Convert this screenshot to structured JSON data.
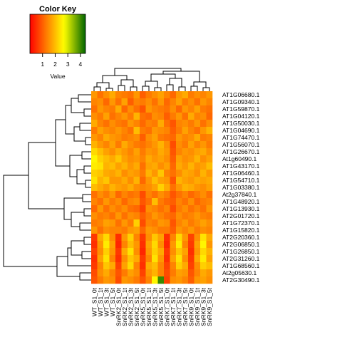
{
  "chart_data": {
    "type": "heatmap",
    "key_title": "Color Key",
    "key_xlabel": "Value",
    "colorlim": [
      0,
      4.4
    ],
    "key_ticks": [
      1,
      2,
      3,
      4
    ],
    "colors": [
      "#ff0000",
      "#ffff00",
      "#006400"
    ],
    "color_stops": [
      0,
      2.7,
      4.4
    ],
    "columns": [
      "WT_S1_0t",
      "WT_S1_1t",
      "WT_S1_3t",
      "WT_S1_5t",
      "SnRK2_S1_0t",
      "SnRK2_S1_1t",
      "SnRK2_S1_3t",
      "SnRK2_S1_5t",
      "SnRK5_S1_0t",
      "SnRK5_S1_1t",
      "SnRK5_S1_3t",
      "SnRK5_S1_5t",
      "SnRK7_S1_0t",
      "SnRK7_S1_1t",
      "SnRK7_S1_3t",
      "SnRK7_S1_5t",
      "SnRK9_S1_0t",
      "SnRK9_S1_1t",
      "SnRK9_S1_3t",
      "SnRK9_S1_5t"
    ],
    "rows": [
      "AT1G06680.1",
      "AT1G09340.1",
      "AT1G59870.1",
      "AT1G04120.1",
      "AT1G50030.1",
      "AT1G04690.1",
      "AT1G74470.1",
      "AT1G56070.1",
      "AT1G26670.1",
      "At1g60490.1",
      "AT1G43170.1",
      "AT1G06460.1",
      "AT1G54710.1",
      "AT1G03380.1",
      "At2g37840.1",
      "AT1G48920.1",
      "AT1G13930.1",
      "AT2G01720.1",
      "AT1G72370.1",
      "AT1G15820.1",
      "AT2G20360.1",
      "AT2G06850.1",
      "AT1G26850.1",
      "AT2G31260.1",
      "AT1G68560.1",
      "At2g05630.1",
      "AT2G30490.1"
    ],
    "values": [
      [
        1.6,
        1.2,
        1.5,
        1.8,
        1.4,
        1.3,
        1.2,
        1.6,
        1.0,
        1.3,
        1.5,
        1.7,
        1.4,
        1.1,
        1.6,
        1.8,
        1.3,
        1.5,
        1.4,
        1.6
      ],
      [
        1.4,
        1.5,
        1.1,
        1.6,
        1.2,
        1.7,
        1.0,
        1.4,
        1.3,
        1.5,
        1.2,
        1.6,
        1.1,
        1.4,
        1.7,
        1.3,
        1.5,
        1.2,
        1.6,
        1.4
      ],
      [
        1.2,
        1.6,
        1.4,
        1.3,
        1.8,
        1.1,
        1.5,
        1.2,
        0.9,
        1.6,
        1.4,
        1.3,
        1.2,
        1.5,
        1.1,
        1.6,
        1.4,
        1.7,
        1.3,
        1.2
      ],
      [
        1.5,
        1.3,
        1.7,
        1.2,
        1.4,
        1.6,
        1.3,
        1.9,
        1.2,
        1.1,
        1.5,
        1.4,
        1.0,
        1.3,
        1.6,
        1.2,
        1.8,
        1.4,
        1.5,
        1.1
      ],
      [
        1.8,
        1.4,
        1.2,
        1.5,
        1.3,
        1.2,
        1.6,
        1.4,
        1.1,
        1.4,
        1.3,
        1.8,
        1.2,
        0.9,
        1.4,
        1.5,
        1.3,
        1.6,
        1.2,
        1.5
      ],
      [
        1.3,
        1.7,
        1.5,
        1.4,
        1.6,
        1.4,
        1.2,
        2.0,
        1.3,
        1.2,
        1.6,
        1.5,
        1.4,
        1.0,
        1.3,
        1.7,
        1.4,
        1.2,
        1.6,
        1.9
      ],
      [
        1.6,
        1.4,
        1.8,
        1.6,
        1.5,
        1.3,
        1.4,
        1.5,
        1.0,
        1.5,
        1.7,
        1.3,
        1.2,
        1.1,
        1.6,
        1.4,
        1.5,
        1.8,
        1.3,
        1.4
      ],
      [
        1.9,
        1.6,
        1.4,
        1.7,
        1.3,
        1.8,
        1.5,
        1.3,
        1.2,
        1.4,
        1.6,
        1.9,
        1.5,
        0.8,
        1.5,
        1.3,
        1.7,
        1.4,
        1.6,
        1.3
      ],
      [
        2.3,
        2.0,
        1.7,
        1.5,
        1.8,
        1.6,
        1.4,
        1.7,
        1.3,
        1.6,
        1.5,
        1.8,
        1.6,
        0.9,
        1.4,
        1.6,
        1.5,
        1.7,
        1.8,
        1.5
      ],
      [
        2.6,
        2.2,
        2.0,
        1.8,
        2.1,
        1.7,
        1.5,
        1.6,
        1.4,
        1.8,
        1.6,
        1.7,
        1.5,
        1.0,
        1.7,
        1.5,
        1.6,
        1.9,
        1.5,
        1.7
      ],
      [
        2.5,
        2.4,
        1.9,
        2.0,
        1.7,
        1.9,
        1.6,
        1.8,
        1.2,
        1.7,
        1.8,
        1.5,
        1.7,
        1.1,
        1.8,
        1.6,
        1.9,
        1.6,
        1.7,
        2.0
      ],
      [
        2.2,
        2.1,
        1.8,
        1.7,
        1.9,
        1.5,
        1.7,
        1.6,
        1.3,
        1.9,
        1.6,
        2.1,
        1.4,
        1.2,
        1.5,
        1.8,
        1.7,
        1.5,
        1.9,
        1.6
      ],
      [
        2.4,
        1.9,
        2.1,
        1.6,
        1.6,
        1.8,
        1.5,
        1.9,
        1.1,
        1.6,
        2.0,
        1.7,
        1.6,
        0.9,
        1.9,
        1.7,
        1.6,
        1.8,
        1.7,
        1.8
      ],
      [
        2.0,
        1.8,
        1.6,
        1.9,
        1.7,
        1.6,
        1.8,
        1.5,
        1.4,
        1.5,
        1.7,
        2.2,
        1.8,
        1.2,
        1.6,
        1.9,
        1.8,
        1.6,
        1.5,
        1.7
      ],
      [
        1.2,
        1.5,
        1.3,
        1.6,
        1.1,
        1.4,
        1.2,
        1.3,
        0.8,
        1.4,
        1.2,
        1.5,
        1.3,
        0.9,
        1.2,
        1.4,
        1.1,
        1.3,
        1.5,
        1.2
      ],
      [
        1.4,
        1.2,
        1.6,
        1.3,
        1.5,
        1.1,
        1.4,
        1.5,
        0.9,
        1.2,
        2.0,
        1.3,
        1.1,
        1.0,
        1.4,
        1.2,
        1.5,
        1.1,
        1.3,
        1.4
      ],
      [
        1.1,
        1.6,
        1.2,
        1.5,
        1.3,
        1.5,
        1.2,
        1.1,
        0.7,
        1.5,
        1.4,
        1.2,
        1.4,
        0.8,
        1.3,
        1.5,
        1.2,
        1.4,
        1.2,
        1.6
      ],
      [
        1.5,
        1.3,
        1.4,
        1.2,
        1.6,
        1.2,
        1.5,
        1.4,
        1.0,
        1.3,
        1.6,
        1.4,
        1.2,
        1.1,
        1.5,
        1.3,
        1.4,
        1.6,
        1.4,
        1.3
      ],
      [
        1.3,
        1.4,
        1.7,
        1.6,
        1.2,
        1.6,
        1.3,
        2.2,
        0.8,
        1.4,
        1.3,
        1.6,
        1.5,
        0.9,
        1.4,
        1.6,
        1.3,
        1.5,
        1.7,
        1.5
      ],
      [
        1.6,
        1.2,
        1.5,
        1.4,
        1.4,
        1.3,
        1.6,
        1.7,
        1.1,
        1.6,
        1.5,
        1.3,
        1.3,
        1.0,
        1.6,
        1.4,
        1.6,
        1.3,
        1.5,
        1.4
      ],
      [
        0.6,
        1.8,
        2.3,
        1.5,
        0.5,
        1.6,
        2.2,
        1.4,
        0.6,
        1.5,
        2.1,
        1.7,
        0.5,
        1.4,
        2.3,
        1.6,
        0.7,
        1.5,
        2.4,
        1.8
      ],
      [
        0.5,
        1.6,
        2.5,
        1.7,
        0.4,
        1.4,
        2.0,
        1.6,
        0.5,
        1.7,
        2.3,
        1.5,
        0.4,
        1.6,
        2.5,
        1.4,
        0.6,
        1.7,
        2.6,
        1.6
      ],
      [
        0.7,
        1.5,
        2.2,
        1.6,
        0.6,
        1.8,
        2.4,
        1.5,
        0.4,
        1.6,
        2.2,
        1.8,
        0.6,
        1.5,
        2.1,
        1.7,
        0.5,
        1.6,
        2.3,
        1.9
      ],
      [
        0.5,
        1.7,
        2.4,
        1.4,
        0.5,
        1.5,
        2.1,
        1.8,
        0.6,
        1.4,
        2.4,
        1.6,
        0.5,
        1.7,
        2.4,
        1.5,
        0.6,
        1.8,
        2.5,
        1.7
      ],
      [
        0.6,
        1.4,
        2.1,
        1.8,
        0.7,
        1.7,
        2.3,
        1.4,
        0.5,
        1.8,
        2.0,
        1.4,
        0.7,
        1.4,
        2.2,
        1.8,
        0.7,
        1.5,
        2.2,
        2.0
      ],
      [
        0.8,
        1.5,
        1.8,
        1.4,
        0.9,
        1.3,
        1.7,
        1.5,
        0.7,
        1.6,
        1.9,
        1.4,
        0.8,
        1.3,
        1.7,
        1.6,
        0.9,
        1.4,
        1.8,
        1.6
      ],
      [
        0.9,
        1.3,
        1.6,
        1.5,
        0.8,
        1.6,
        1.5,
        1.3,
        0.9,
        1.4,
        2.6,
        4.0,
        0.7,
        1.5,
        1.6,
        1.4,
        1.0,
        1.6,
        1.7,
        1.5
      ]
    ]
  }
}
